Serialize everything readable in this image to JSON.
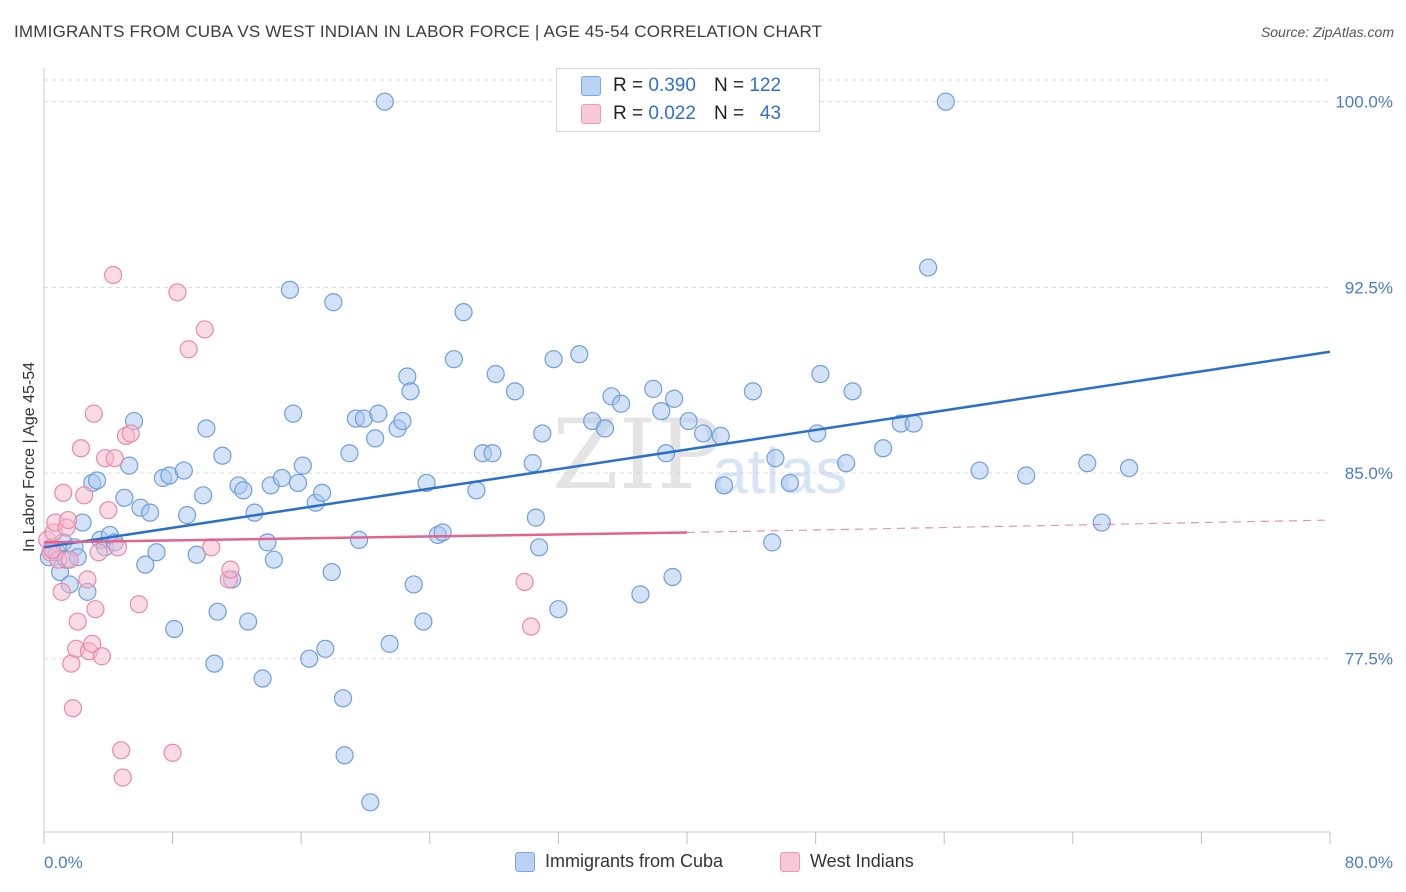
{
  "header": {
    "title": "IMMIGRANTS FROM CUBA VS WEST INDIAN IN LABOR FORCE | AGE 45-54 CORRELATION CHART",
    "source": "Source: ZipAtlas.com"
  },
  "legend": {
    "rows": [
      {
        "r_label": "R =",
        "r_value": "0.390",
        "n_label": "N =",
        "n_value": "122"
      },
      {
        "r_label": "R =",
        "r_value": "0.022",
        "n_label": "N =",
        "n_value": "43"
      }
    ]
  },
  "bottom_legend": {
    "items": [
      "Immigrants from Cuba",
      "West Indians"
    ]
  },
  "watermark": {
    "zip": "ZIP",
    "atlas": "atlas"
  },
  "colors": {
    "blue_fill": "#a9c6f0",
    "blue_stroke": "#6e9fdc",
    "blue_line": "#2a6fcb",
    "pink_fill": "#f5b8cc",
    "pink_stroke": "#e98aa8",
    "pink_line": "#e0648e",
    "grid": "#dcdcdc",
    "axis_label": "#4a7cc8"
  },
  "chart_data": {
    "type": "scatter",
    "title": "IMMIGRANTS FROM CUBA VS WEST INDIAN IN LABOR FORCE | AGE 45-54 CORRELATION CHART",
    "xlabel": "",
    "ylabel": "In Labor Force | Age 45-54",
    "xlim": [
      0,
      80
    ],
    "ylim": [
      70.5,
      101.2
    ],
    "x_tick_labels": [
      "0.0%",
      "80.0%"
    ],
    "y_ticks": [
      77.5,
      85.0,
      92.5,
      100.0
    ],
    "y_tick_labels": [
      "77.5%",
      "85.0%",
      "92.5%",
      "100.0%"
    ],
    "grid": true,
    "legend_position": "top-center",
    "series": [
      {
        "name": "Immigrants from Cuba",
        "r": 0.39,
        "n": 122,
        "trend": {
          "x": [
            0,
            80
          ],
          "y": [
            82.0,
            89.9
          ]
        },
        "points": [
          [
            0.3,
            81.6
          ],
          [
            0.5,
            82.0
          ],
          [
            0.8,
            81.8
          ],
          [
            1.0,
            81.0
          ],
          [
            1.2,
            82.2
          ],
          [
            1.4,
            81.5
          ],
          [
            1.6,
            80.5
          ],
          [
            1.9,
            82.0
          ],
          [
            2.1,
            81.6
          ],
          [
            2.4,
            83.0
          ],
          [
            2.7,
            80.2
          ],
          [
            3.0,
            84.6
          ],
          [
            3.3,
            84.7
          ],
          [
            3.5,
            82.3
          ],
          [
            3.8,
            82.0
          ],
          [
            4.1,
            82.5
          ],
          [
            4.4,
            82.2
          ],
          [
            5.0,
            84.0
          ],
          [
            5.3,
            85.3
          ],
          [
            5.6,
            87.1
          ],
          [
            6.0,
            83.6
          ],
          [
            6.3,
            81.3
          ],
          [
            6.6,
            83.4
          ],
          [
            7.0,
            81.8
          ],
          [
            7.4,
            84.8
          ],
          [
            7.8,
            84.9
          ],
          [
            8.1,
            78.7
          ],
          [
            8.7,
            85.1
          ],
          [
            8.9,
            83.3
          ],
          [
            9.5,
            81.7
          ],
          [
            9.9,
            84.1
          ],
          [
            10.1,
            86.8
          ],
          [
            10.6,
            77.3
          ],
          [
            10.8,
            79.4
          ],
          [
            11.1,
            85.7
          ],
          [
            11.7,
            80.7
          ],
          [
            12.1,
            84.5
          ],
          [
            12.4,
            84.3
          ],
          [
            12.7,
            79.0
          ],
          [
            13.1,
            83.4
          ],
          [
            13.6,
            76.7
          ],
          [
            13.9,
            82.2
          ],
          [
            14.1,
            84.5
          ],
          [
            14.3,
            81.5
          ],
          [
            14.8,
            84.8
          ],
          [
            15.3,
            92.4
          ],
          [
            15.5,
            87.4
          ],
          [
            15.8,
            84.6
          ],
          [
            16.1,
            85.3
          ],
          [
            16.5,
            77.5
          ],
          [
            16.9,
            83.8
          ],
          [
            17.3,
            84.2
          ],
          [
            17.5,
            77.9
          ],
          [
            17.9,
            81.0
          ],
          [
            18.0,
            91.9
          ],
          [
            18.6,
            75.9
          ],
          [
            18.7,
            73.6
          ],
          [
            19.0,
            85.8
          ],
          [
            19.4,
            87.2
          ],
          [
            19.6,
            82.3
          ],
          [
            19.9,
            87.2
          ],
          [
            20.3,
            71.7
          ],
          [
            20.6,
            86.4
          ],
          [
            20.8,
            87.4
          ],
          [
            21.2,
            100.0
          ],
          [
            21.5,
            78.1
          ],
          [
            22.0,
            86.8
          ],
          [
            22.3,
            87.1
          ],
          [
            22.6,
            88.9
          ],
          [
            22.8,
            88.3
          ],
          [
            23.0,
            80.5
          ],
          [
            23.6,
            79.0
          ],
          [
            23.8,
            84.6
          ],
          [
            24.5,
            82.5
          ],
          [
            24.8,
            82.6
          ],
          [
            25.5,
            89.6
          ],
          [
            26.1,
            91.5
          ],
          [
            26.9,
            84.3
          ],
          [
            27.3,
            85.8
          ],
          [
            27.9,
            85.8
          ],
          [
            28.1,
            89.0
          ],
          [
            29.3,
            88.3
          ],
          [
            30.4,
            85.4
          ],
          [
            30.6,
            83.2
          ],
          [
            30.8,
            82.0
          ],
          [
            31.0,
            86.6
          ],
          [
            31.7,
            89.6
          ],
          [
            32.0,
            79.5
          ],
          [
            33.3,
            89.8
          ],
          [
            34.1,
            87.1
          ],
          [
            34.9,
            86.8
          ],
          [
            35.3,
            88.1
          ],
          [
            35.9,
            87.8
          ],
          [
            37.1,
            80.1
          ],
          [
            37.9,
            88.4
          ],
          [
            38.4,
            87.5
          ],
          [
            38.7,
            85.8
          ],
          [
            39.1,
            80.8
          ],
          [
            39.2,
            88.0
          ],
          [
            40.1,
            87.1
          ],
          [
            41.0,
            86.6
          ],
          [
            42.1,
            86.5
          ],
          [
            42.3,
            84.5
          ],
          [
            44.1,
            88.3
          ],
          [
            45.3,
            82.2
          ],
          [
            45.5,
            85.6
          ],
          [
            46.4,
            84.6
          ],
          [
            48.1,
            86.6
          ],
          [
            48.3,
            89.0
          ],
          [
            49.9,
            85.4
          ],
          [
            50.3,
            88.3
          ],
          [
            52.2,
            86.0
          ],
          [
            53.3,
            87.0
          ],
          [
            54.1,
            87.0
          ],
          [
            55.0,
            93.3
          ],
          [
            56.1,
            100.0
          ],
          [
            58.2,
            85.1
          ],
          [
            61.1,
            84.9
          ],
          [
            64.9,
            85.4
          ],
          [
            65.8,
            83.0
          ],
          [
            67.5,
            85.2
          ]
        ]
      },
      {
        "name": "West Indians",
        "r": 0.022,
        "n": 43,
        "trend": {
          "x": [
            0,
            40
          ],
          "y": [
            82.2,
            82.6
          ]
        },
        "trend_dashed": {
          "x": [
            40,
            80
          ],
          "y": [
            82.6,
            83.1
          ]
        },
        "points": [
          [
            0.2,
            82.3
          ],
          [
            0.4,
            81.8
          ],
          [
            0.6,
            82.6
          ],
          [
            0.7,
            83.0
          ],
          [
            0.9,
            81.5
          ],
          [
            1.1,
            80.2
          ],
          [
            1.2,
            84.2
          ],
          [
            1.4,
            82.8
          ],
          [
            1.5,
            83.1
          ],
          [
            1.6,
            81.5
          ],
          [
            1.7,
            77.3
          ],
          [
            1.8,
            75.5
          ],
          [
            2.0,
            77.9
          ],
          [
            2.1,
            79.0
          ],
          [
            2.3,
            86.0
          ],
          [
            2.5,
            84.1
          ],
          [
            2.7,
            80.7
          ],
          [
            2.8,
            77.8
          ],
          [
            3.0,
            78.1
          ],
          [
            3.1,
            87.4
          ],
          [
            3.2,
            79.5
          ],
          [
            3.4,
            81.8
          ],
          [
            3.6,
            77.6
          ],
          [
            3.8,
            85.6
          ],
          [
            4.0,
            83.5
          ],
          [
            4.3,
            93.0
          ],
          [
            4.4,
            85.6
          ],
          [
            4.6,
            82.0
          ],
          [
            4.8,
            73.8
          ],
          [
            4.9,
            72.7
          ],
          [
            5.1,
            86.5
          ],
          [
            5.4,
            86.6
          ],
          [
            5.9,
            79.7
          ],
          [
            8.0,
            73.7
          ],
          [
            8.3,
            92.3
          ],
          [
            9.0,
            90.0
          ],
          [
            10.0,
            90.8
          ],
          [
            10.4,
            82.0
          ],
          [
            11.5,
            80.7
          ],
          [
            11.6,
            81.1
          ],
          [
            29.9,
            80.6
          ],
          [
            30.3,
            78.8
          ],
          [
            0.5,
            81.9
          ]
        ]
      }
    ]
  }
}
